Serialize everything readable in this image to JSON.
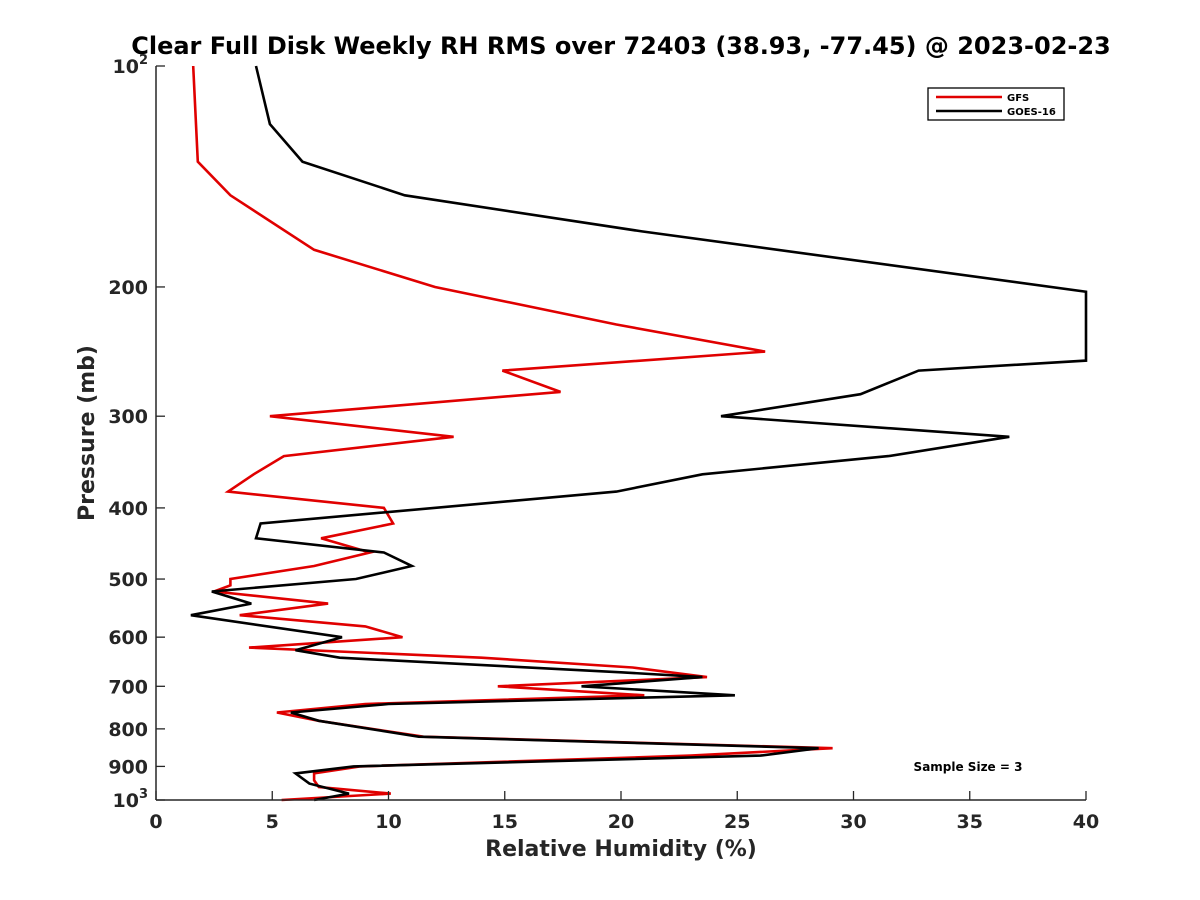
{
  "chart_data": {
    "type": "line",
    "title": "Clear Full Disk Weekly RH RMS over 72403 (38.93, -77.45) @ 2023-02-23",
    "xlabel": "Relative Humidity (%)",
    "ylabel": "Pressure (mb)",
    "xlim": [
      0,
      40
    ],
    "ylim": [
      100,
      1000
    ],
    "y_scale": "log",
    "y_reversed": true,
    "grid": false,
    "legend_position": "top-right",
    "x_ticks": [
      "0",
      "5",
      "10",
      "15",
      "20",
      "25",
      "30",
      "35",
      "40"
    ],
    "y_ticks": [
      {
        "value": 100,
        "base": "10",
        "exp": "2"
      },
      {
        "value": 200,
        "label": "200"
      },
      {
        "value": 300,
        "label": "300"
      },
      {
        "value": 400,
        "label": "400"
      },
      {
        "value": 500,
        "label": "500"
      },
      {
        "value": 600,
        "label": "600"
      },
      {
        "value": 700,
        "label": "700"
      },
      {
        "value": 800,
        "label": "800"
      },
      {
        "value": 900,
        "label": "900"
      },
      {
        "value": 1000,
        "base": "10",
        "exp": "3"
      }
    ],
    "annotation": "Sample Size = 3",
    "series": [
      {
        "name": "GFS",
        "color": "#e00000",
        "points": [
          {
            "x": 1.6,
            "y": 100
          },
          {
            "x": 1.8,
            "y": 135
          },
          {
            "x": 3.2,
            "y": 150
          },
          {
            "x": 6.8,
            "y": 178
          },
          {
            "x": 12.0,
            "y": 200
          },
          {
            "x": 19.8,
            "y": 225
          },
          {
            "x": 26.2,
            "y": 245
          },
          {
            "x": 14.9,
            "y": 260
          },
          {
            "x": 17.4,
            "y": 278
          },
          {
            "x": 4.9,
            "y": 300
          },
          {
            "x": 12.8,
            "y": 320
          },
          {
            "x": 5.5,
            "y": 340
          },
          {
            "x": 4.2,
            "y": 360
          },
          {
            "x": 3.1,
            "y": 380
          },
          {
            "x": 9.8,
            "y": 400
          },
          {
            "x": 10.2,
            "y": 420
          },
          {
            "x": 7.1,
            "y": 440
          },
          {
            "x": 9.2,
            "y": 460
          },
          {
            "x": 6.8,
            "y": 480
          },
          {
            "x": 3.2,
            "y": 500
          },
          {
            "x": 3.2,
            "y": 510
          },
          {
            "x": 2.5,
            "y": 520
          },
          {
            "x": 7.4,
            "y": 540
          },
          {
            "x": 3.6,
            "y": 560
          },
          {
            "x": 9.0,
            "y": 580
          },
          {
            "x": 10.6,
            "y": 600
          },
          {
            "x": 4.0,
            "y": 620
          },
          {
            "x": 14.0,
            "y": 640
          },
          {
            "x": 20.5,
            "y": 660
          },
          {
            "x": 23.7,
            "y": 680
          },
          {
            "x": 14.7,
            "y": 700
          },
          {
            "x": 21.0,
            "y": 720
          },
          {
            "x": 9.0,
            "y": 740
          },
          {
            "x": 5.2,
            "y": 760
          },
          {
            "x": 7.0,
            "y": 780
          },
          {
            "x": 11.5,
            "y": 820
          },
          {
            "x": 29.1,
            "y": 850
          },
          {
            "x": 23.0,
            "y": 870
          },
          {
            "x": 8.8,
            "y": 900
          },
          {
            "x": 6.8,
            "y": 920
          },
          {
            "x": 6.8,
            "y": 940
          },
          {
            "x": 7.0,
            "y": 960
          },
          {
            "x": 10.1,
            "y": 980
          },
          {
            "x": 5.4,
            "y": 1000
          }
        ]
      },
      {
        "name": "GOES-16",
        "color": "#000000",
        "points": [
          {
            "x": 4.3,
            "y": 100
          },
          {
            "x": 4.9,
            "y": 120
          },
          {
            "x": 6.3,
            "y": 135
          },
          {
            "x": 10.7,
            "y": 150
          },
          {
            "x": 20.9,
            "y": 168
          },
          {
            "x": 40.0,
            "y": 203
          },
          {
            "x": 40.0,
            "y": 252
          },
          {
            "x": 32.8,
            "y": 260
          },
          {
            "x": 30.3,
            "y": 280
          },
          {
            "x": 24.3,
            "y": 300
          },
          {
            "x": 36.7,
            "y": 320
          },
          {
            "x": 31.5,
            "y": 340
          },
          {
            "x": 23.5,
            "y": 360
          },
          {
            "x": 19.8,
            "y": 380
          },
          {
            "x": 4.5,
            "y": 420
          },
          {
            "x": 4.3,
            "y": 440
          },
          {
            "x": 9.8,
            "y": 460
          },
          {
            "x": 11.0,
            "y": 480
          },
          {
            "x": 8.6,
            "y": 500
          },
          {
            "x": 2.4,
            "y": 520
          },
          {
            "x": 4.1,
            "y": 540
          },
          {
            "x": 1.5,
            "y": 560
          },
          {
            "x": 8.0,
            "y": 600
          },
          {
            "x": 6.0,
            "y": 625
          },
          {
            "x": 7.9,
            "y": 640
          },
          {
            "x": 20.0,
            "y": 670
          },
          {
            "x": 23.5,
            "y": 680
          },
          {
            "x": 18.3,
            "y": 700
          },
          {
            "x": 24.9,
            "y": 720
          },
          {
            "x": 10.0,
            "y": 740
          },
          {
            "x": 5.8,
            "y": 760
          },
          {
            "x": 7.0,
            "y": 780
          },
          {
            "x": 11.3,
            "y": 820
          },
          {
            "x": 28.5,
            "y": 850
          },
          {
            "x": 26.0,
            "y": 870
          },
          {
            "x": 8.5,
            "y": 900
          },
          {
            "x": 6.0,
            "y": 920
          },
          {
            "x": 6.6,
            "y": 950
          },
          {
            "x": 8.3,
            "y": 980
          },
          {
            "x": 6.8,
            "y": 1000
          }
        ]
      }
    ]
  }
}
